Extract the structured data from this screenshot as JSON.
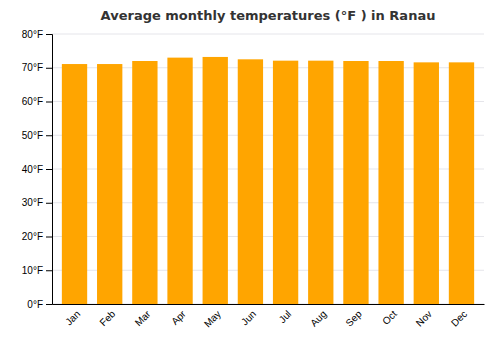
{
  "chart_data": {
    "type": "bar",
    "title": "Average monthly temperatures (°F ) in Ranau",
    "categories": [
      "Jan",
      "Feb",
      "Mar",
      "Apr",
      "May",
      "Jun",
      "Jul",
      "Aug",
      "Sep",
      "Oct",
      "Nov",
      "Dec"
    ],
    "values": [
      71.1,
      71.1,
      72.0,
      73.0,
      73.2,
      72.5,
      72.1,
      72.1,
      72.0,
      72.0,
      71.6,
      71.6
    ],
    "color": "#FFA500",
    "ylim": [
      0,
      80
    ],
    "yticks": [
      {
        "value": 0,
        "label": "0°F"
      },
      {
        "value": 10,
        "label": "10°F"
      },
      {
        "value": 20,
        "label": "20°F"
      },
      {
        "value": 30,
        "label": "30°F"
      },
      {
        "value": 40,
        "label": "40°F"
      },
      {
        "value": 50,
        "label": "50°F"
      },
      {
        "value": 60,
        "label": "60°F"
      },
      {
        "value": 70,
        "label": "70°F"
      },
      {
        "value": 80,
        "label": "80°F"
      }
    ],
    "grid": true
  }
}
